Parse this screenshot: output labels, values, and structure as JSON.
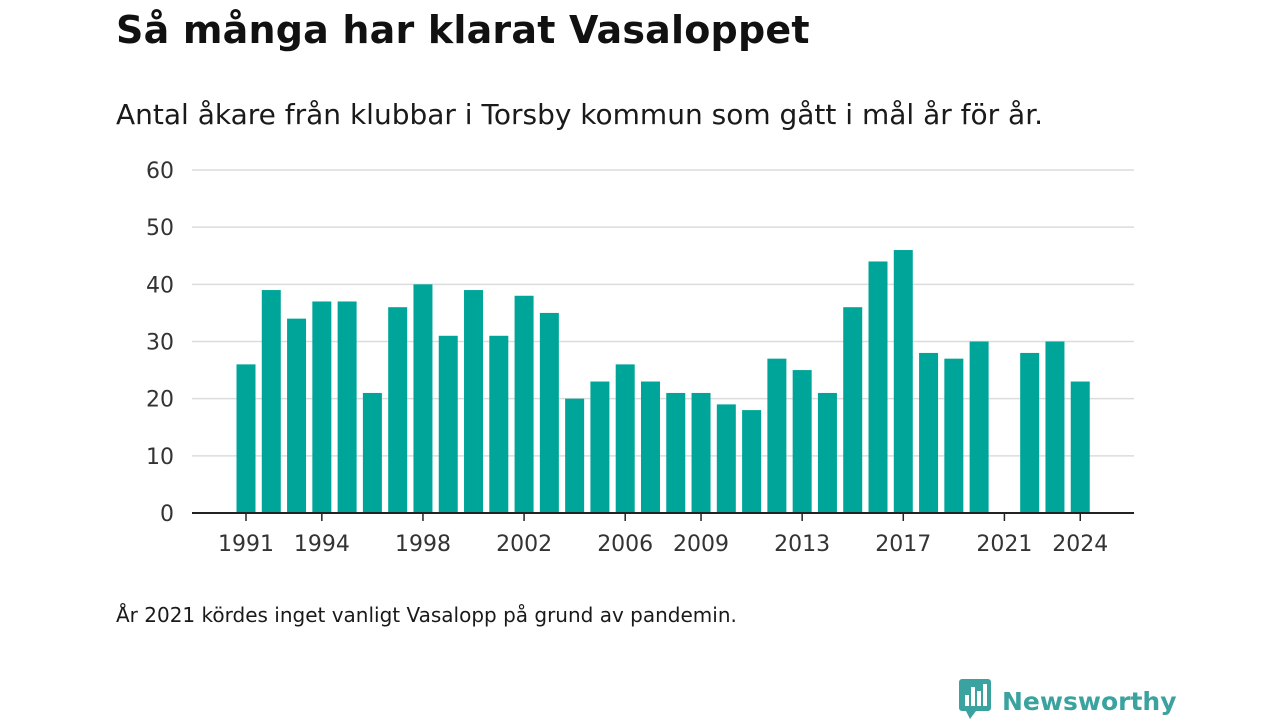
{
  "header": {
    "title": "Så många har klarat Vasaloppet",
    "subtitle": "Antal åkare från klubbar i Torsby kommun som gått i mål år för år."
  },
  "footer": {
    "note": "År 2021 kördes inget vanligt Vasalopp på grund av pandemin.",
    "brand": "Newsworthy",
    "brand_icon": "bar-chart-icon"
  },
  "colors": {
    "bar": "#00a59a",
    "grid": "#dcdcdc",
    "axis": "#222222",
    "brand": "#3aa3a0"
  },
  "chart_data": {
    "type": "bar",
    "title": "Så många har klarat Vasaloppet",
    "subtitle": "Antal åkare från klubbar i Torsby kommun som gått i mål år för år.",
    "xlabel": "",
    "ylabel": "",
    "x": [
      1991,
      1992,
      1993,
      1994,
      1995,
      1996,
      1997,
      1998,
      1999,
      2000,
      2001,
      2002,
      2003,
      2004,
      2005,
      2006,
      2007,
      2008,
      2009,
      2010,
      2011,
      2012,
      2013,
      2014,
      2015,
      2016,
      2017,
      2018,
      2019,
      2020,
      2021,
      2022,
      2023,
      2024
    ],
    "values": [
      26,
      39,
      34,
      37,
      37,
      21,
      36,
      40,
      31,
      39,
      31,
      38,
      35,
      20,
      23,
      26,
      23,
      21,
      21,
      19,
      18,
      27,
      25,
      21,
      36,
      44,
      46,
      28,
      27,
      30,
      null,
      28,
      30,
      23
    ],
    "x_tick_labels": [
      "1991",
      "1994",
      "1998",
      "2002",
      "2006",
      "2009",
      "2013",
      "2017",
      "2021",
      "2024"
    ],
    "y_ticks": [
      0,
      10,
      20,
      30,
      40,
      50,
      60
    ],
    "ylim": [
      0,
      60
    ],
    "grid": true,
    "legend": "none"
  }
}
